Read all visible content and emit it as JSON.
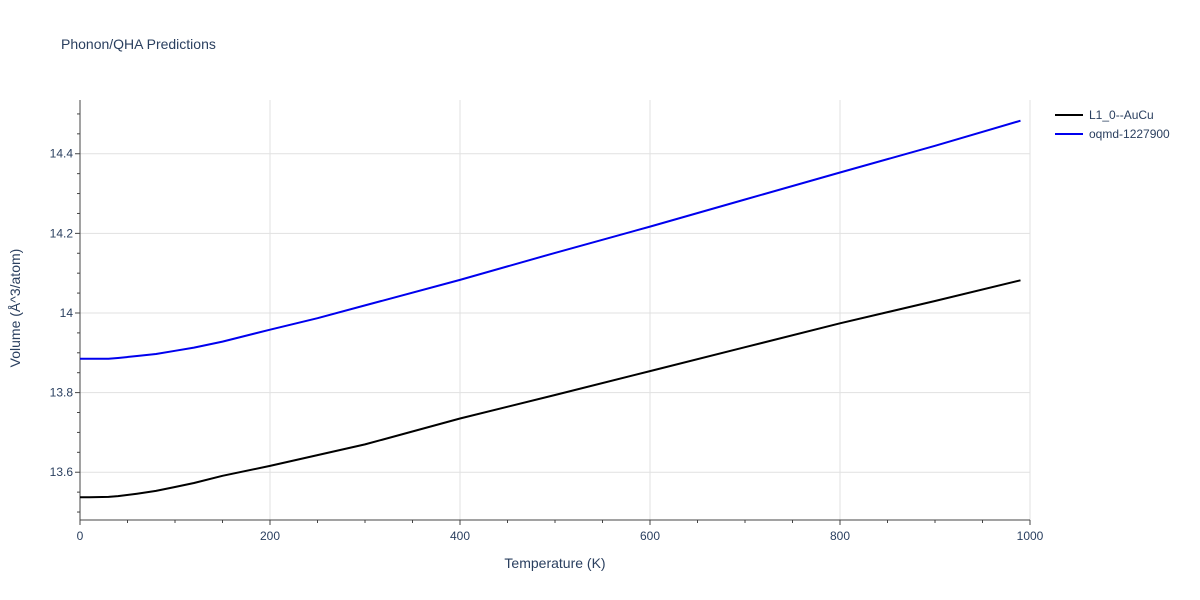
{
  "chart_data": {
    "type": "line",
    "title": "Phonon/QHA Predictions",
    "xlabel": "Temperature (K)",
    "ylabel": "Volume (Å^3/atom)",
    "xlim": [
      0,
      1000
    ],
    "ylim": [
      13.48,
      14.535
    ],
    "xticks": [
      0,
      200,
      400,
      600,
      800,
      1000
    ],
    "xtick_labels": [
      "0",
      "200",
      "400",
      "600",
      "800",
      "1000"
    ],
    "yticks": [
      13.6,
      13.8,
      14.0,
      14.2,
      14.4
    ],
    "ytick_labels": [
      "13.6",
      "13.8",
      "14",
      "14.2",
      "14.4"
    ],
    "grid": true,
    "legend_position": "top-right",
    "series": [
      {
        "name": "L1_0--AuCu",
        "color": "#000000",
        "x": [
          0,
          10,
          30,
          40,
          60,
          80,
          100,
          120,
          150,
          200,
          250,
          300,
          400,
          500,
          600,
          700,
          800,
          900,
          990
        ],
        "y": [
          13.537,
          13.537,
          13.538,
          13.54,
          13.546,
          13.553,
          13.563,
          13.573,
          13.591,
          13.616,
          13.643,
          13.67,
          13.735,
          13.794,
          13.854,
          13.914,
          13.974,
          14.03,
          14.082
        ]
      },
      {
        "name": "oqmd-1227900",
        "color": "#0000ee",
        "x": [
          0,
          10,
          30,
          40,
          60,
          80,
          100,
          120,
          150,
          200,
          250,
          300,
          400,
          500,
          600,
          700,
          800,
          900,
          990
        ],
        "y": [
          13.885,
          13.885,
          13.885,
          13.887,
          13.892,
          13.897,
          13.905,
          13.913,
          13.928,
          13.958,
          13.987,
          14.019,
          14.083,
          14.151,
          14.217,
          14.285,
          14.353,
          14.42,
          14.483
        ]
      }
    ]
  }
}
